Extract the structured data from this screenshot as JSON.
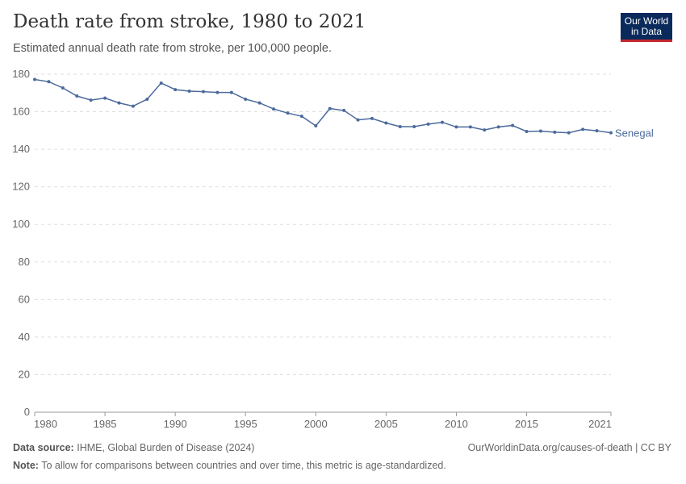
{
  "header": {
    "title": "Death rate from stroke, 1980 to 2021",
    "subtitle": "Estimated annual death rate from stroke, per 100,000 people.",
    "logo": "Our World in Data"
  },
  "footer": {
    "source_label": "Data source:",
    "source": "IHME, Global Burden of Disease (2024)",
    "url": "OurWorldinData.org/causes-of-death | CC BY",
    "note_label": "Note:",
    "note": "To allow for comparisons between countries and over time, this metric is age-standardized."
  },
  "chart_data": {
    "type": "line",
    "title": "Death rate from stroke, 1980 to 2021",
    "subtitle": "Estimated annual death rate from stroke, per 100,000 people.",
    "xlim": [
      1980,
      2021
    ],
    "ylim": [
      0,
      180
    ],
    "yticks": [
      0,
      20,
      40,
      60,
      80,
      100,
      120,
      140,
      160,
      180
    ],
    "xticks": [
      1980,
      1985,
      1990,
      1995,
      2000,
      2005,
      2010,
      2015,
      2021
    ],
    "grid": "horizontal dashed",
    "color": "#4c6a9c",
    "series": [
      {
        "name": "Senegal",
        "x": [
          1980,
          1981,
          1982,
          1983,
          1984,
          1985,
          1986,
          1987,
          1988,
          1989,
          1990,
          1991,
          1992,
          1993,
          1994,
          1995,
          1996,
          1997,
          1998,
          1999,
          2000,
          2001,
          2002,
          2003,
          2004,
          2005,
          2006,
          2007,
          2008,
          2009,
          2010,
          2011,
          2012,
          2013,
          2014,
          2015,
          2016,
          2017,
          2018,
          2019,
          2020,
          2021
        ],
        "y": [
          177.2,
          176,
          172.7,
          168.4,
          166.2,
          167.3,
          164.7,
          163,
          166.7,
          175.3,
          171.8,
          171,
          170.7,
          170.3,
          170.3,
          166.7,
          164.7,
          161.5,
          159.3,
          157.6,
          152.5,
          161.7,
          160.7,
          155.7,
          156.4,
          154,
          152.1,
          152.1,
          153.4,
          154.4,
          151.9,
          151.9,
          150.3,
          151.9,
          152.7,
          149.5,
          149.7,
          149.1,
          148.8,
          150.6,
          149.9,
          148.8
        ]
      }
    ]
  }
}
